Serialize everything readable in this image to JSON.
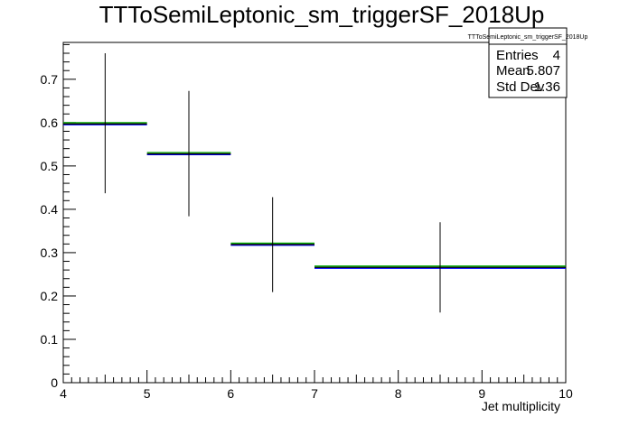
{
  "chart_data": {
    "type": "histogram",
    "title": "TTToSemiLeptonic_sm_triggerSF_2018Up",
    "xlabel": "Jet multiplicity",
    "ylabel": "",
    "xlim": [
      4,
      10
    ],
    "ylim": [
      0,
      0.785
    ],
    "x_ticks": [
      "4",
      "5",
      "6",
      "7",
      "8",
      "9",
      "10"
    ],
    "y_ticks": [
      "0",
      "0.1",
      "0.2",
      "0.3",
      "0.4",
      "0.5",
      "0.6",
      "0.7"
    ],
    "bins": [
      {
        "low": 4,
        "high": 5,
        "center": 4.5,
        "y": 0.597,
        "err_low": 0.437,
        "err_high": 0.76
      },
      {
        "low": 5,
        "high": 6,
        "center": 5.5,
        "y": 0.528,
        "err_low": 0.384,
        "err_high": 0.673
      },
      {
        "low": 6,
        "high": 7,
        "center": 6.5,
        "y": 0.319,
        "err_low": 0.209,
        "err_high": 0.428
      },
      {
        "low": 7,
        "high": 10,
        "center": 8.5,
        "y": 0.266,
        "err_low": 0.162,
        "err_high": 0.37
      }
    ],
    "series": [
      {
        "color": "#0000ff",
        "offset": -0.002
      },
      {
        "color": "#00aa00",
        "offset": 0.003
      },
      {
        "color": "#000000",
        "offset": 0.0
      }
    ],
    "stats_box": {
      "title": "TTToSemiLeptonic_sm_triggerSF_2018Up",
      "rows": [
        {
          "label": "Entries",
          "value": "4"
        },
        {
          "label": "Mean",
          "value": "5.807"
        },
        {
          "label": "Std Dev",
          "value": "1.36"
        }
      ]
    }
  }
}
